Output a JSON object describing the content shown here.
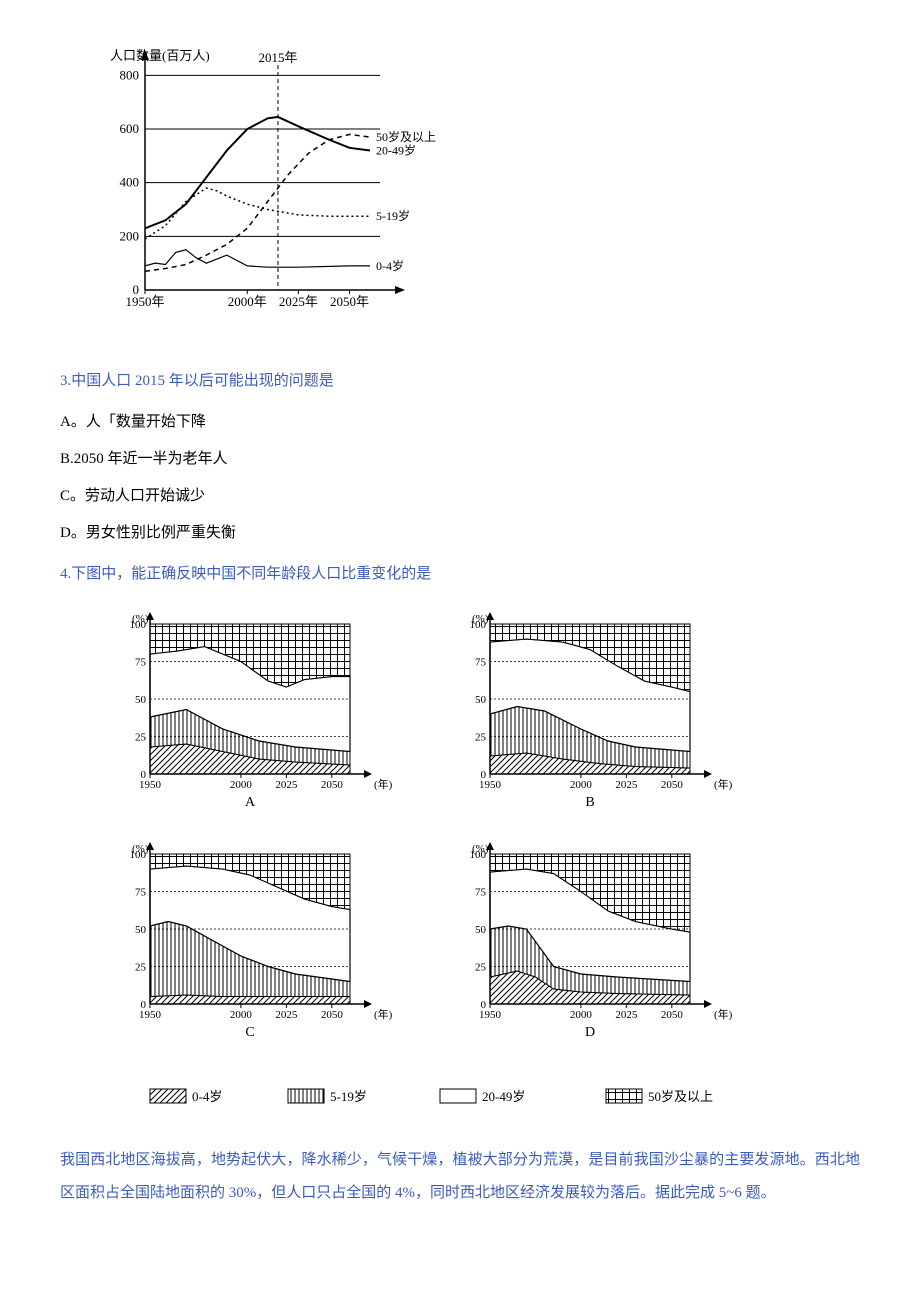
{
  "colors": {
    "ink": "#000000",
    "question_blue": "#3b5bbf",
    "background": "#ffffff"
  },
  "chart1": {
    "type": "line",
    "y_axis_title": "人口数量(百万人)",
    "marker_year": "2015年",
    "x_ticks": [
      "1950年",
      "2000年",
      "2025年",
      "2050年"
    ],
    "x_tick_vals": [
      1950,
      2000,
      2025,
      2050
    ],
    "y_ticks": [
      0,
      200,
      400,
      600,
      800
    ],
    "xlim": [
      1950,
      2060
    ],
    "ylim": [
      0,
      820
    ],
    "marker_x": 2015,
    "series": [
      {
        "name": "50岁及以上",
        "label": "50岁及以上",
        "style": "dashed",
        "points": [
          [
            1950,
            70
          ],
          [
            1960,
            80
          ],
          [
            1970,
            95
          ],
          [
            1980,
            130
          ],
          [
            1990,
            170
          ],
          [
            2000,
            230
          ],
          [
            2010,
            330
          ],
          [
            2020,
            430
          ],
          [
            2030,
            510
          ],
          [
            2040,
            560
          ],
          [
            2050,
            580
          ],
          [
            2060,
            570
          ]
        ]
      },
      {
        "name": "20-49岁",
        "label": "20-49岁",
        "style": "solid-thick",
        "points": [
          [
            1950,
            230
          ],
          [
            1960,
            260
          ],
          [
            1970,
            320
          ],
          [
            1980,
            420
          ],
          [
            1990,
            520
          ],
          [
            2000,
            600
          ],
          [
            2010,
            640
          ],
          [
            2015,
            645
          ],
          [
            2025,
            610
          ],
          [
            2040,
            560
          ],
          [
            2050,
            530
          ],
          [
            2060,
            520
          ]
        ]
      },
      {
        "name": "5-19岁",
        "label": "5-19岁",
        "style": "dotted",
        "points": [
          [
            1950,
            190
          ],
          [
            1960,
            240
          ],
          [
            1970,
            330
          ],
          [
            1980,
            380
          ],
          [
            1985,
            370
          ],
          [
            1990,
            350
          ],
          [
            2000,
            320
          ],
          [
            2010,
            300
          ],
          [
            2025,
            280
          ],
          [
            2040,
            275
          ],
          [
            2050,
            275
          ],
          [
            2060,
            275
          ]
        ]
      },
      {
        "name": "0-4岁",
        "label": "0-4岁",
        "style": "solid-thin",
        "points": [
          [
            1950,
            90
          ],
          [
            1955,
            100
          ],
          [
            1960,
            95
          ],
          [
            1965,
            140
          ],
          [
            1970,
            150
          ],
          [
            1975,
            120
          ],
          [
            1980,
            100
          ],
          [
            1990,
            130
          ],
          [
            2000,
            90
          ],
          [
            2010,
            85
          ],
          [
            2025,
            85
          ],
          [
            2050,
            90
          ],
          [
            2060,
            90
          ]
        ]
      }
    ]
  },
  "q3": {
    "stem": "3.中国人口 2015 年以后可能出现的问题是",
    "options": {
      "A": "A。人「数量开始下降",
      "B": "B.2050 年近一半为老年人",
      "C": "C。劳动人口开始诚少",
      "D": "D。男女性别比例严重失衡"
    }
  },
  "q4": {
    "stem": "4.下图中，能正确反映中国不同年龄段人口比重变化的是"
  },
  "chart2": {
    "type": "stacked-area-multiples",
    "y_label": "(%)",
    "y_ticks": [
      0,
      25,
      50,
      75,
      100
    ],
    "x_ticks": [
      "1950",
      "2000",
      "2025",
      "2050"
    ],
    "x_tick_vals": [
      1950,
      2000,
      2025,
      2050
    ],
    "x_label": "(年)",
    "xlim": [
      1950,
      2060
    ],
    "legend": [
      {
        "pattern": "diagonal",
        "label": "0-4岁"
      },
      {
        "pattern": "vertical",
        "label": "5-19岁"
      },
      {
        "pattern": "blank",
        "label": "20-49岁"
      },
      {
        "pattern": "crosshatch",
        "label": "50岁及以上"
      }
    ],
    "panels": {
      "A": {
        "b1": [
          [
            1950,
            18
          ],
          [
            1970,
            20
          ],
          [
            1990,
            15
          ],
          [
            2010,
            10
          ],
          [
            2030,
            8
          ],
          [
            2060,
            6
          ]
        ],
        "b2": [
          [
            1950,
            38
          ],
          [
            1970,
            43
          ],
          [
            1990,
            30
          ],
          [
            2010,
            22
          ],
          [
            2030,
            18
          ],
          [
            2060,
            15
          ]
        ],
        "b3": [
          [
            1950,
            80
          ],
          [
            1965,
            82
          ],
          [
            1980,
            85
          ],
          [
            2000,
            75
          ],
          [
            2015,
            62
          ],
          [
            2025,
            58
          ],
          [
            2035,
            63
          ],
          [
            2050,
            65
          ],
          [
            2060,
            65
          ]
        ]
      },
      "B": {
        "b1": [
          [
            1950,
            12
          ],
          [
            1970,
            14
          ],
          [
            1990,
            10
          ],
          [
            2010,
            7
          ],
          [
            2030,
            5
          ],
          [
            2060,
            4
          ]
        ],
        "b2": [
          [
            1950,
            40
          ],
          [
            1965,
            45
          ],
          [
            1980,
            42
          ],
          [
            2000,
            30
          ],
          [
            2015,
            22
          ],
          [
            2030,
            18
          ],
          [
            2060,
            15
          ]
        ],
        "b3": [
          [
            1950,
            88
          ],
          [
            1970,
            90
          ],
          [
            1990,
            88
          ],
          [
            2005,
            83
          ],
          [
            2020,
            72
          ],
          [
            2035,
            62
          ],
          [
            2050,
            58
          ],
          [
            2060,
            55
          ]
        ]
      },
      "C": {
        "b1": [
          [
            1950,
            5
          ],
          [
            1970,
            6
          ],
          [
            1990,
            5
          ],
          [
            2010,
            5
          ],
          [
            2030,
            5
          ],
          [
            2060,
            5
          ]
        ],
        "b2": [
          [
            1950,
            52
          ],
          [
            1960,
            55
          ],
          [
            1970,
            52
          ],
          [
            1985,
            42
          ],
          [
            2000,
            32
          ],
          [
            2015,
            25
          ],
          [
            2030,
            20
          ],
          [
            2060,
            15
          ]
        ],
        "b3": [
          [
            1950,
            90
          ],
          [
            1970,
            92
          ],
          [
            1990,
            90
          ],
          [
            2005,
            86
          ],
          [
            2020,
            78
          ],
          [
            2035,
            70
          ],
          [
            2050,
            65
          ],
          [
            2060,
            63
          ]
        ]
      },
      "D": {
        "b1": [
          [
            1950,
            18
          ],
          [
            1965,
            22
          ],
          [
            1975,
            18
          ],
          [
            1985,
            10
          ],
          [
            2000,
            8
          ],
          [
            2020,
            7
          ],
          [
            2060,
            6
          ]
        ],
        "b2": [
          [
            1950,
            50
          ],
          [
            1960,
            52
          ],
          [
            1970,
            50
          ],
          [
            1985,
            25
          ],
          [
            2000,
            20
          ],
          [
            2020,
            18
          ],
          [
            2060,
            15
          ]
        ],
        "b3": [
          [
            1950,
            88
          ],
          [
            1970,
            90
          ],
          [
            1985,
            87
          ],
          [
            2000,
            75
          ],
          [
            2015,
            62
          ],
          [
            2030,
            55
          ],
          [
            2050,
            50
          ],
          [
            2060,
            48
          ]
        ]
      }
    }
  },
  "passage": {
    "text": "我国西北地区海拔高，地势起伏大，降水稀少，气候干燥，植被大部分为荒漠，是目前我国沙尘暴的主要发源地。西北地区面积占全国陆地面积的 30%，但人口只占全国的 4%，同时西北地区经济发展较为落后。据此完成 5~6 题。"
  }
}
